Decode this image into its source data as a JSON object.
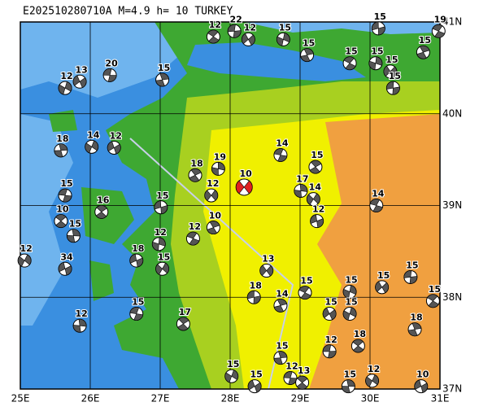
{
  "title": "E202510280710A  M=4.9  h=  10  TURKEY",
  "lonlim": [
    25,
    31
  ],
  "latlim": [
    37,
    41
  ],
  "lonticks": [
    {
      "value": 25,
      "label": "25E"
    },
    {
      "value": 26,
      "label": "26E"
    },
    {
      "value": 27,
      "label": "27E"
    },
    {
      "value": 28,
      "label": "28E"
    },
    {
      "value": 29,
      "label": "29E"
    },
    {
      "value": 30,
      "label": "30E"
    },
    {
      "value": 31,
      "label": "31E"
    }
  ],
  "latticks": [
    {
      "value": 37,
      "label": "37N"
    },
    {
      "value": 38,
      "label": "38N"
    },
    {
      "value": 39,
      "label": "39N"
    },
    {
      "value": 40,
      "label": "40N"
    },
    {
      "value": 41,
      "label": "41N"
    }
  ],
  "main_color": "#e02020",
  "events": [
    {
      "lon": 28.2,
      "lat": 39.2,
      "depth": 10,
      "main": true
    },
    {
      "lon": 30.12,
      "lat": 40.93,
      "depth": 15
    },
    {
      "lon": 30.98,
      "lat": 40.9,
      "depth": 19
    },
    {
      "lon": 30.76,
      "lat": 40.67,
      "depth": 15
    },
    {
      "lon": 30.08,
      "lat": 40.55,
      "depth": 15
    },
    {
      "lon": 30.29,
      "lat": 40.46,
      "depth": 15
    },
    {
      "lon": 30.33,
      "lat": 40.28,
      "depth": 15
    },
    {
      "lon": 29.71,
      "lat": 40.55,
      "depth": 15
    },
    {
      "lon": 29.1,
      "lat": 40.64,
      "depth": 15
    },
    {
      "lon": 28.76,
      "lat": 40.81,
      "depth": 15
    },
    {
      "lon": 28.26,
      "lat": 40.81,
      "depth": 12
    },
    {
      "lon": 28.06,
      "lat": 40.9,
      "depth": 22
    },
    {
      "lon": 27.76,
      "lat": 40.84,
      "depth": 12
    },
    {
      "lon": 27.03,
      "lat": 40.37,
      "depth": 15
    },
    {
      "lon": 25.64,
      "lat": 40.28,
      "depth": 12
    },
    {
      "lon": 25.85,
      "lat": 40.35,
      "depth": 13
    },
    {
      "lon": 26.28,
      "lat": 40.42,
      "depth": 20
    },
    {
      "lon": 25.58,
      "lat": 38.83,
      "depth": 10
    },
    {
      "lon": 25.58,
      "lat": 39.6,
      "depth": 18
    },
    {
      "lon": 26.02,
      "lat": 39.64,
      "depth": 14
    },
    {
      "lon": 26.34,
      "lat": 39.63,
      "depth": 12
    },
    {
      "lon": 25.64,
      "lat": 39.11,
      "depth": 15
    },
    {
      "lon": 26.16,
      "lat": 38.93,
      "depth": 16
    },
    {
      "lon": 25.76,
      "lat": 38.67,
      "depth": 15
    },
    {
      "lon": 25.06,
      "lat": 38.4,
      "depth": 12
    },
    {
      "lon": 25.64,
      "lat": 38.31,
      "depth": 34
    },
    {
      "lon": 28.72,
      "lat": 39.55,
      "depth": 14
    },
    {
      "lon": 29.22,
      "lat": 39.42,
      "depth": 15
    },
    {
      "lon": 29.01,
      "lat": 39.16,
      "depth": 17
    },
    {
      "lon": 29.19,
      "lat": 39.07,
      "depth": 14
    },
    {
      "lon": 29.24,
      "lat": 38.83,
      "depth": 12
    },
    {
      "lon": 30.09,
      "lat": 39.0,
      "depth": 14
    },
    {
      "lon": 27.5,
      "lat": 39.33,
      "depth": 18
    },
    {
      "lon": 27.83,
      "lat": 39.4,
      "depth": 19
    },
    {
      "lon": 27.73,
      "lat": 39.11,
      "depth": 12
    },
    {
      "lon": 27.01,
      "lat": 38.98,
      "depth": 15
    },
    {
      "lon": 27.47,
      "lat": 38.64,
      "depth": 12
    },
    {
      "lon": 27.76,
      "lat": 38.76,
      "depth": 10
    },
    {
      "lon": 26.98,
      "lat": 38.58,
      "depth": 12
    },
    {
      "lon": 28.52,
      "lat": 38.29,
      "depth": 13
    },
    {
      "lon": 28.34,
      "lat": 38.0,
      "depth": 18
    },
    {
      "lon": 29.07,
      "lat": 38.05,
      "depth": 15
    },
    {
      "lon": 28.72,
      "lat": 37.91,
      "depth": 14
    },
    {
      "lon": 29.71,
      "lat": 38.06,
      "depth": 15
    },
    {
      "lon": 30.17,
      "lat": 38.11,
      "depth": 15
    },
    {
      "lon": 30.58,
      "lat": 38.22,
      "depth": 15
    },
    {
      "lon": 30.9,
      "lat": 37.96,
      "depth": 15
    },
    {
      "lon": 30.64,
      "lat": 37.65,
      "depth": 18
    },
    {
      "lon": 29.71,
      "lat": 37.82,
      "depth": 15
    },
    {
      "lon": 29.42,
      "lat": 37.82,
      "depth": 15
    },
    {
      "lon": 29.42,
      "lat": 37.41,
      "depth": 12
    },
    {
      "lon": 29.83,
      "lat": 37.47,
      "depth": 18
    },
    {
      "lon": 28.72,
      "lat": 37.34,
      "depth": 15
    },
    {
      "lon": 28.02,
      "lat": 37.14,
      "depth": 15
    },
    {
      "lon": 28.35,
      "lat": 37.03,
      "depth": 15
    },
    {
      "lon": 28.86,
      "lat": 37.12,
      "depth": 12
    },
    {
      "lon": 29.03,
      "lat": 37.07,
      "depth": 13
    },
    {
      "lon": 29.69,
      "lat": 37.03,
      "depth": 15
    },
    {
      "lon": 30.03,
      "lat": 37.09,
      "depth": 12
    },
    {
      "lon": 30.73,
      "lat": 37.03,
      "depth": 10
    },
    {
      "lon": 26.66,
      "lat": 37.82,
      "depth": 15
    },
    {
      "lon": 27.33,
      "lat": 37.71,
      "depth": 17
    },
    {
      "lon": 25.85,
      "lat": 37.69,
      "depth": 12
    },
    {
      "lon": 27.03,
      "lat": 38.31,
      "depth": 15
    },
    {
      "lon": 26.66,
      "lat": 38.4,
      "depth": 18
    }
  ]
}
